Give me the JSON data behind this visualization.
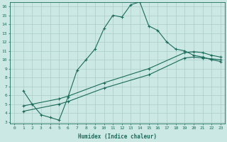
{
  "xlabel": "Humidex (Indice chaleur)",
  "ylabel": "",
  "bg_color": "#cce8e4",
  "line_color": "#1a6b5a",
  "grid_color": "#aaccc8",
  "xlim": [
    -0.5,
    23.5
  ],
  "ylim": [
    2.8,
    16.5
  ],
  "xticks": [
    0,
    1,
    2,
    3,
    4,
    5,
    6,
    7,
    8,
    9,
    10,
    11,
    12,
    13,
    14,
    15,
    16,
    17,
    18,
    19,
    20,
    21,
    22,
    23
  ],
  "yticks": [
    3,
    4,
    5,
    6,
    7,
    8,
    9,
    10,
    11,
    12,
    13,
    14,
    15,
    16
  ],
  "line1_x": [
    1,
    2,
    3,
    4,
    5,
    6,
    7,
    8,
    9,
    10,
    11,
    12,
    13,
    14,
    15,
    16,
    17,
    18,
    19,
    20,
    21,
    22,
    23
  ],
  "line1_y": [
    6.5,
    5.0,
    3.8,
    3.5,
    3.2,
    5.8,
    8.8,
    10.0,
    11.2,
    13.5,
    15.0,
    14.8,
    16.2,
    16.5,
    13.8,
    13.3,
    12.0,
    11.2,
    11.0,
    10.5,
    10.3,
    10.0,
    9.8
  ],
  "line2_x": [
    1,
    5,
    6,
    10,
    15,
    19,
    20,
    21,
    22,
    23
  ],
  "line2_y": [
    4.2,
    5.0,
    5.3,
    6.8,
    8.3,
    10.2,
    10.3,
    10.2,
    10.1,
    10.0
  ],
  "line3_x": [
    1,
    5,
    6,
    10,
    15,
    19,
    20,
    21,
    22,
    23
  ],
  "line3_y": [
    4.8,
    5.6,
    5.9,
    7.4,
    9.0,
    10.8,
    10.9,
    10.8,
    10.5,
    10.3
  ]
}
